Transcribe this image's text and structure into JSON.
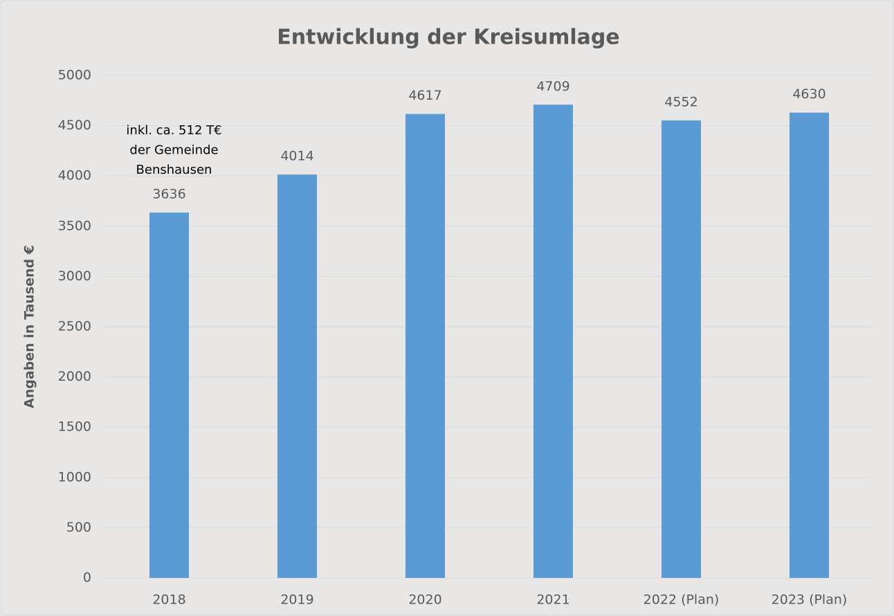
{
  "chart_data": {
    "type": "bar",
    "title": "Entwicklung der Kreisumlage",
    "y_label": "Angaben in Tausend €",
    "categories": [
      "2018",
      "2019",
      "2020",
      "2021",
      "2022 (Plan)",
      "2023 (Plan)"
    ],
    "values": [
      3636,
      4014,
      4617,
      4709,
      4552,
      4630
    ],
    "color": "#5b9bd5",
    "ylim": [
      0,
      5000
    ],
    "yticks": [
      0,
      500,
      1000,
      1500,
      2000,
      2500,
      3000,
      3500,
      4000,
      4500,
      5000
    ],
    "grid": true,
    "annotation": [
      "inkl. ca. 512 T€",
      "der Gemeinde",
      "Benshausen"
    ]
  }
}
